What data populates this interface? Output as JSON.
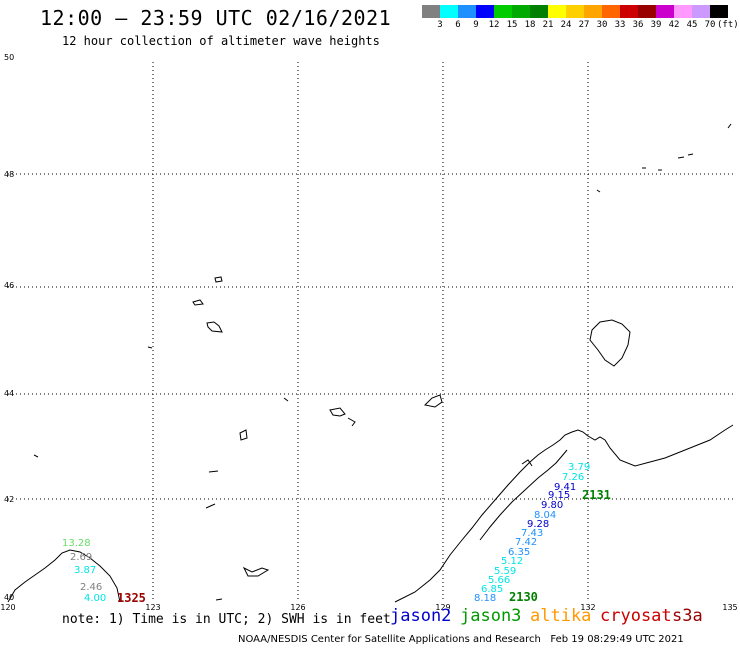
{
  "header": {
    "title": "12:00 — 23:59 UTC 02/16/2021",
    "subtitle": "12 hour collection of altimeter wave heights"
  },
  "color_scale": {
    "colors": [
      "#808080",
      "#00ffff",
      "#1e90ff",
      "#0000ff",
      "#00cc00",
      "#00aa00",
      "#008000",
      "#ffff00",
      "#ffd000",
      "#ffa500",
      "#ff6600",
      "#cc0000",
      "#990000",
      "#cc00cc",
      "#ff99ff",
      "#cc99ff",
      "#000000"
    ],
    "labels": [
      "3",
      "6",
      "9",
      "12",
      "15",
      "18",
      "21",
      "24",
      "27",
      "30",
      "33",
      "36",
      "39",
      "42",
      "45",
      "70"
    ],
    "unit": "(ft)"
  },
  "axes": {
    "lat_labels": [
      "50",
      "48",
      "46",
      "44",
      "42",
      "40"
    ],
    "lon_labels": [
      "120",
      "123",
      "126",
      "129",
      "132",
      "135"
    ]
  },
  "track_times": {
    "pass_a_end": "2131",
    "pass_a_start": "2130",
    "pass_b": "1325"
  },
  "observations": {
    "pass_a": [
      {
        "v": "3.79",
        "c": "#00e5e5"
      },
      {
        "v": "7.26",
        "c": "#00e5e5"
      },
      {
        "v": "9.41",
        "c": "#0000cc"
      },
      {
        "v": "9.15",
        "c": "#0000cc"
      },
      {
        "v": "9.80",
        "c": "#0000cc"
      },
      {
        "v": "8.04",
        "c": "#1e90ff"
      },
      {
        "v": "9.28",
        "c": "#0000cc"
      },
      {
        "v": "7.43",
        "c": "#1e90ff"
      },
      {
        "v": "7.42",
        "c": "#1e90ff"
      },
      {
        "v": "6.35",
        "c": "#1e90ff"
      },
      {
        "v": "5.12",
        "c": "#00e5e5"
      },
      {
        "v": "5.59",
        "c": "#00e5e5"
      },
      {
        "v": "5.66",
        "c": "#00e5e5"
      },
      {
        "v": "6.85",
        "c": "#00e5e5"
      },
      {
        "v": "8.18",
        "c": "#1e90ff"
      }
    ],
    "pass_b": [
      {
        "v": "13.28",
        "c": "#66dd66"
      },
      {
        "v": "2.69",
        "c": "#808080"
      },
      {
        "v": "3.87",
        "c": "#00e5e5"
      },
      {
        "v": "2.46",
        "c": "#808080"
      },
      {
        "v": "4.00",
        "c": "#00e5e5"
      }
    ]
  },
  "footer": {
    "note": "note: 1) Time is in UTC; 2) SWH is in feet",
    "missions": [
      {
        "name": "jason2",
        "color": "#0000cc"
      },
      {
        "name": "jason3",
        "color": "#009900"
      },
      {
        "name": "altika",
        "color": "#ff9900"
      },
      {
        "name": "cryosat",
        "color": "#cc0000"
      },
      {
        "name": "s3a",
        "color": "#990000"
      }
    ],
    "credit": "NOAA/NESDIS Center for Satellite Applications and Research",
    "generated": "Feb 19 08:29:49 UTC 2021"
  }
}
